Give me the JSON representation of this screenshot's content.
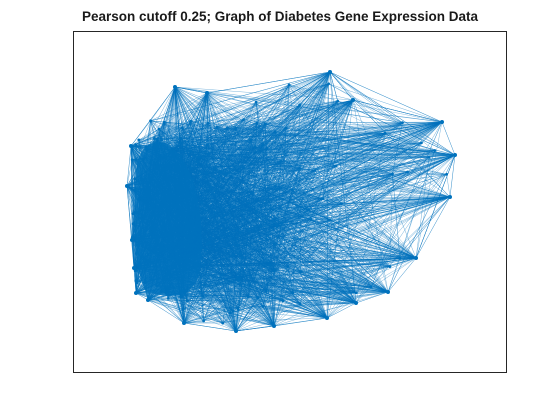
{
  "figure": {
    "title": "Pearson cutoff 0.25; Graph of Diabetes Gene Expression Data",
    "edge_color": "#0072BD",
    "node_color": "#0072BD"
  },
  "chart_data": {
    "type": "network-graph",
    "title": "Pearson cutoff 0.25; Graph of Diabetes Gene Expression Data",
    "layout": "force",
    "axes_ticks": "off",
    "grid": false
  }
}
